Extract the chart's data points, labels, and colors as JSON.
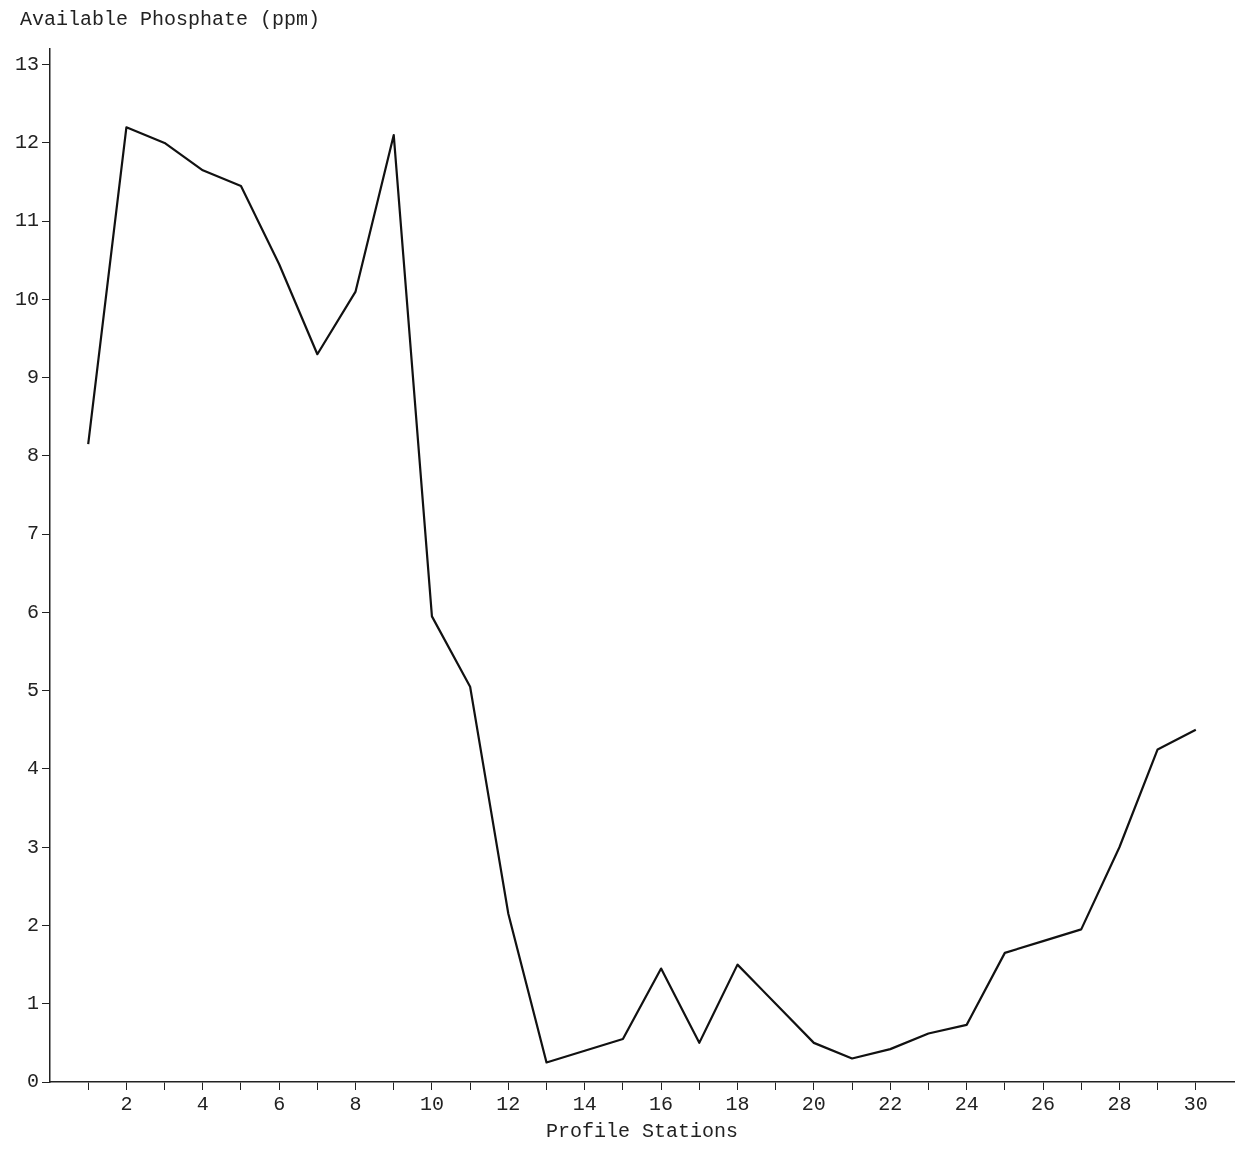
{
  "chart_data": {
    "type": "line",
    "ylabel": "Available Phosphate (ppm)",
    "xlabel": "Profile Stations",
    "x": [
      1,
      2,
      3,
      4,
      5,
      6,
      7,
      8,
      9,
      10,
      11,
      12,
      13,
      14,
      15,
      16,
      17,
      18,
      19,
      20,
      21,
      22,
      23,
      24,
      25,
      26,
      27,
      28,
      29,
      30
    ],
    "series": [
      {
        "color": "#111111",
        "values": [
          8.15,
          12.2,
          12.0,
          11.65,
          11.45,
          10.45,
          9.3,
          10.1,
          12.1,
          5.95,
          5.05,
          2.15,
          0.25,
          0.4,
          0.55,
          1.45,
          0.5,
          1.5,
          1.0,
          0.5,
          0.3,
          0.42,
          0.62,
          0.73,
          1.65,
          1.8,
          1.95,
          3.0,
          4.25,
          4.5
        ]
      }
    ],
    "xlim": [
      0,
      31
    ],
    "xticks": [
      {
        "value": 1,
        "label": null
      },
      2,
      {
        "value": 3,
        "label": null
      },
      4,
      {
        "value": 5,
        "label": null
      },
      6,
      {
        "value": 7,
        "label": null
      },
      8,
      {
        "value": 9,
        "label": null
      },
      10,
      {
        "value": 11,
        "label": null
      },
      12,
      {
        "value": 13,
        "label": null
      },
      14,
      {
        "value": 15,
        "label": null
      },
      16,
      {
        "value": 17,
        "label": null
      },
      18,
      {
        "value": 19,
        "label": null
      },
      20,
      {
        "value": 21,
        "label": null
      },
      22,
      {
        "value": 23,
        "label": null
      },
      24,
      {
        "value": 25,
        "label": null
      },
      26,
      {
        "value": 27,
        "label": null
      },
      28,
      {
        "value": 29,
        "label": null
      },
      30
    ],
    "ylim": [
      0,
      13.2
    ],
    "yticks": [
      0,
      1,
      2,
      3,
      4,
      5,
      6,
      7,
      8,
      9,
      10,
      11,
      12,
      13
    ],
    "grid": false,
    "legend": false,
    "marker": "none",
    "line_style": "solid"
  }
}
